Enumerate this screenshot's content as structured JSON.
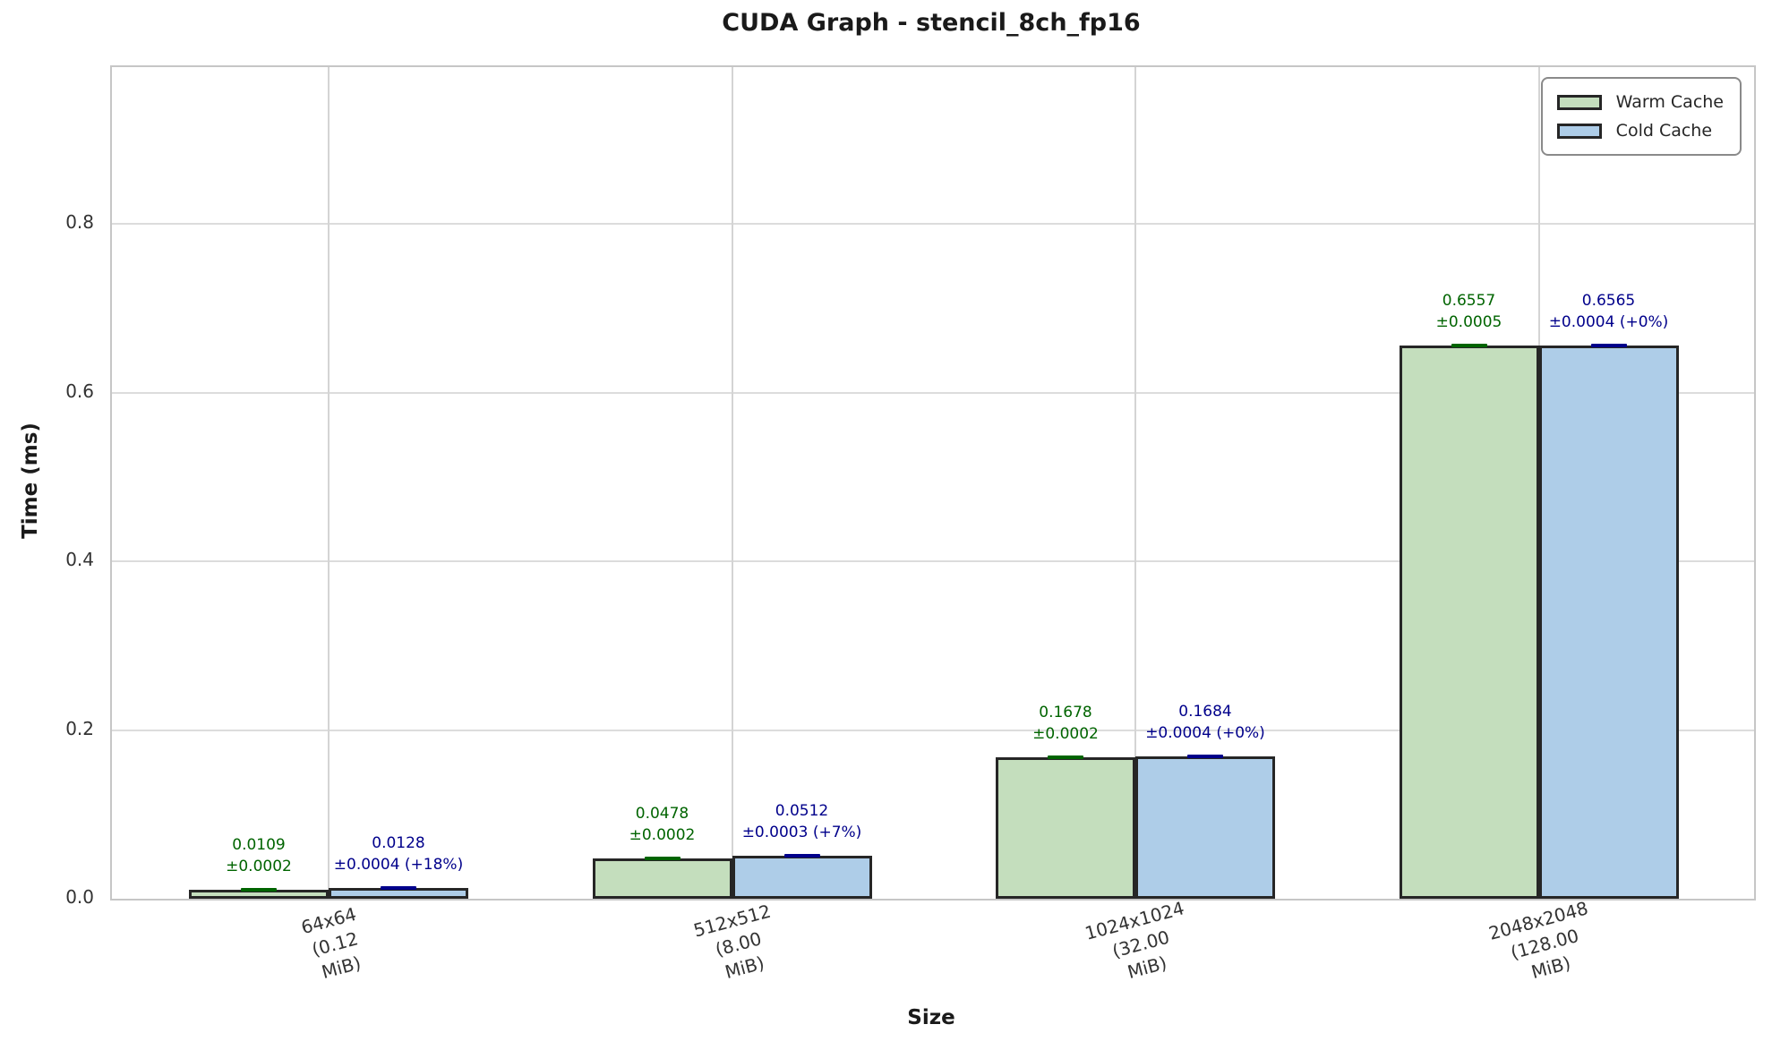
{
  "title": "CUDA Graph - stencil_8ch_fp16",
  "chart_data": {
    "type": "bar",
    "title": "CUDA Graph - stencil_8ch_fp16",
    "xlabel": "Size",
    "ylabel": "Time (ms)",
    "grid": true,
    "legend_position": "upper right",
    "ylim": [
      0,
      0.986
    ],
    "yticks": [
      0.0,
      0.2,
      0.4,
      0.6,
      0.8
    ],
    "ytick_labels": [
      "0.0",
      "0.2",
      "0.4",
      "0.6",
      "0.8"
    ],
    "categories": [
      "64x64\n(0.12 MiB)",
      "512x512\n(8.00 MiB)",
      "1024x1024\n(32.00 MiB)",
      "2048x2048\n(128.00 MiB)"
    ],
    "series": [
      {
        "name": "Warm Cache",
        "fill_color": "#c4debd",
        "edge_color": "#262626",
        "error_color": "#006400",
        "label_color": "#006400",
        "values": [
          0.0109,
          0.0478,
          0.1678,
          0.6557
        ],
        "errors": [
          0.0002,
          0.0002,
          0.0002,
          0.0005
        ],
        "bar_labels": [
          "0.0109\n±0.0002",
          "0.0478\n±0.0002",
          "0.1678\n±0.0002",
          "0.6557\n±0.0005"
        ]
      },
      {
        "name": "Cold Cache",
        "fill_color": "#aecde8",
        "edge_color": "#262626",
        "error_color": "#00008b",
        "label_color": "#00008b",
        "values": [
          0.0128,
          0.0512,
          0.1684,
          0.6565
        ],
        "errors": [
          0.0004,
          0.0003,
          0.0004,
          0.0004
        ],
        "delta_vs_warm": [
          "+18%",
          "+7%",
          "+0%",
          "+0%"
        ],
        "bar_labels": [
          "0.0128\n±0.0004 (+18%)",
          "0.0512\n±0.0003 (+7%)",
          "0.1684\n±0.0004 (+0%)",
          "0.6565\n±0.0004 (+0%)"
        ]
      }
    ]
  }
}
